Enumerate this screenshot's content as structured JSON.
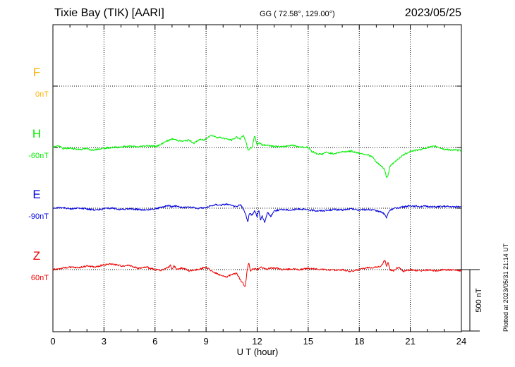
{
  "header": {
    "station": "Tixie Bay (TIK)  [AARI]",
    "coords": "GG ( 72.58°, 129.00°)",
    "date": "2023/05/25"
  },
  "footer": {
    "plotted": "Plotted at 2023/05/31 21:14 UT"
  },
  "scale_bar": {
    "label": "500 nT",
    "value_nT": 500
  },
  "colors": {
    "F": "#ffb000",
    "H": "#00ee00",
    "E": "#0000dd",
    "Z": "#ee0000"
  },
  "chart_data": {
    "type": "line",
    "xlabel": "U T (hour)",
    "xlim": [
      0,
      24
    ],
    "xticks": [
      "0",
      "3",
      "6",
      "9",
      "12",
      "15",
      "18",
      "21",
      "24"
    ],
    "channels": [
      {
        "name": "F",
        "offset_label": "0nT",
        "values": []
      },
      {
        "name": "H",
        "offset_label": "-60nT",
        "x": [
          0,
          0.3,
          0.6,
          1,
          1.5,
          2,
          2.3,
          2.7,
          3,
          3.5,
          4,
          4.5,
          5,
          5.5,
          6,
          6.3,
          6.6,
          6.8,
          7,
          7.3,
          7.6,
          8,
          8.3,
          8.6,
          8.9,
          9.1,
          9.3,
          9.6,
          9.9,
          10.2,
          10.5,
          10.8,
          11.0,
          11.2,
          11.35,
          11.45,
          11.55,
          11.7,
          11.85,
          12.0,
          12.1,
          12.3,
          12.6,
          13,
          13.5,
          14,
          14.5,
          15,
          15.2,
          15.5,
          15.8,
          16,
          16.5,
          17,
          17.5,
          18,
          18.5,
          18.8,
          19,
          19.3,
          19.5,
          19.6,
          19.7,
          19.8,
          20,
          20.3,
          20.6,
          21,
          21.5,
          22,
          22.5,
          23,
          23.5,
          24
        ],
        "values": [
          0,
          15,
          -10,
          -5,
          -15,
          -10,
          -20,
          -10,
          -5,
          0,
          5,
          10,
          5,
          15,
          10,
          20,
          50,
          55,
          70,
          60,
          50,
          60,
          35,
          65,
          60,
          85,
          100,
          85,
          80,
          70,
          60,
          85,
          70,
          100,
          40,
          -20,
          -10,
          0,
          100,
          20,
          40,
          20,
          20,
          10,
          5,
          20,
          5,
          0,
          -30,
          -50,
          -55,
          -40,
          -50,
          -35,
          -30,
          -45,
          -60,
          -80,
          -120,
          -150,
          -180,
          -250,
          -220,
          -150,
          -130,
          -90,
          -60,
          -30,
          -20,
          0,
          10,
          -15,
          -20,
          -25
        ]
      },
      {
        "name": "E",
        "offset_label": "-90nT",
        "x": [
          0,
          0.5,
          1,
          1.5,
          2,
          2.5,
          3,
          3.5,
          4,
          4.5,
          5,
          5.5,
          6,
          6.3,
          6.6,
          6.8,
          7,
          7.3,
          7.6,
          8,
          8.5,
          9,
          9.3,
          9.6,
          9.9,
          10.2,
          10.5,
          10.8,
          11.0,
          11.2,
          11.35,
          11.45,
          11.55,
          11.7,
          11.85,
          12.0,
          12.1,
          12.2,
          12.3,
          12.45,
          12.6,
          12.8,
          13,
          13.5,
          14,
          14.5,
          15,
          15.5,
          16,
          16.5,
          17,
          17.5,
          18,
          18.5,
          19,
          19.3,
          19.5,
          19.6,
          19.7,
          19.8,
          20,
          20.5,
          21,
          21.5,
          22,
          22.5,
          23,
          23.5,
          24
        ],
        "values": [
          0,
          5,
          -5,
          0,
          -5,
          -15,
          -5,
          0,
          -10,
          -5,
          -10,
          -15,
          -5,
          5,
          15,
          25,
          10,
          20,
          5,
          10,
          0,
          5,
          20,
          30,
          25,
          35,
          20,
          10,
          30,
          -10,
          -60,
          -110,
          -40,
          -60,
          -20,
          -70,
          -10,
          -100,
          -60,
          -120,
          -30,
          -70,
          -20,
          -10,
          -15,
          -5,
          -15,
          -20,
          -20,
          -10,
          -15,
          -5,
          -15,
          -10,
          -20,
          -30,
          -50,
          -80,
          -40,
          -15,
          -5,
          10,
          20,
          15,
          15,
          10,
          15,
          10,
          15
        ]
      },
      {
        "name": "Z",
        "offset_label": "60nT",
        "x": [
          0,
          0.5,
          1,
          1.5,
          2,
          2.5,
          3,
          3.5,
          4,
          4.5,
          5,
          5.5,
          6,
          6.4,
          6.8,
          6.9,
          7,
          7.1,
          7.3,
          7.6,
          8,
          8.5,
          9,
          9.3,
          9.6,
          9.9,
          10.2,
          10.5,
          10.8,
          11.0,
          11.2,
          11.3,
          11.4,
          11.5,
          11.6,
          11.8,
          12,
          12.2,
          12.5,
          13,
          13.5,
          14,
          14.5,
          15,
          15.5,
          16,
          16.5,
          17,
          17.5,
          18,
          18.5,
          19,
          19.3,
          19.5,
          19.6,
          19.7,
          19.8,
          20,
          20.3,
          20.6,
          21,
          21.5,
          22,
          22.5,
          23,
          23.5,
          24
        ],
        "values": [
          0,
          10,
          20,
          15,
          30,
          20,
          40,
          45,
          30,
          35,
          10,
          20,
          0,
          -5,
          20,
          40,
          -5,
          30,
          0,
          15,
          -10,
          0,
          20,
          -10,
          -30,
          -50,
          -60,
          -40,
          -30,
          -80,
          -120,
          -140,
          -20,
          60,
          -10,
          10,
          0,
          20,
          5,
          15,
          0,
          5,
          0,
          10,
          5,
          0,
          -5,
          0,
          -15,
          0,
          15,
          20,
          30,
          80,
          30,
          60,
          0,
          -10,
          20,
          -15,
          0,
          -10,
          -5,
          -10,
          0,
          -5,
          -10
        ]
      }
    ]
  }
}
